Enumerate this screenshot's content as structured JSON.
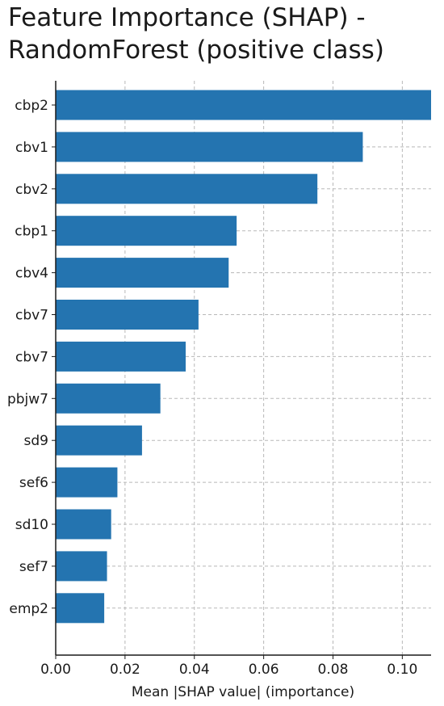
{
  "chart_data": {
    "type": "bar",
    "orientation": "horizontal",
    "title": "Feature Importance (SHAP) -\nRandomForest (positive class)",
    "xlabel": "Mean |SHAP value| (importance)",
    "ylabel": "",
    "categories": [
      "cbp2",
      "cbv1",
      "cbv2",
      "cbp1",
      "cbv4",
      "cbv7",
      "cbv7",
      "pbjw7",
      "sd9",
      "sef6",
      "sd10",
      "sef7",
      "emp2"
    ],
    "values": [
      0.1083,
      0.0886,
      0.0755,
      0.0522,
      0.0499,
      0.0412,
      0.0375,
      0.0302,
      0.0249,
      0.0178,
      0.016,
      0.0148,
      0.014
    ],
    "xlim": [
      0.0,
      0.1083
    ],
    "xticks": [
      0.0,
      0.02,
      0.04,
      0.06,
      0.08,
      0.1
    ],
    "xtick_labels": [
      "0.00",
      "0.02",
      "0.04",
      "0.06",
      "0.08",
      "0.10"
    ],
    "grid": true,
    "color": "#2474b0"
  }
}
